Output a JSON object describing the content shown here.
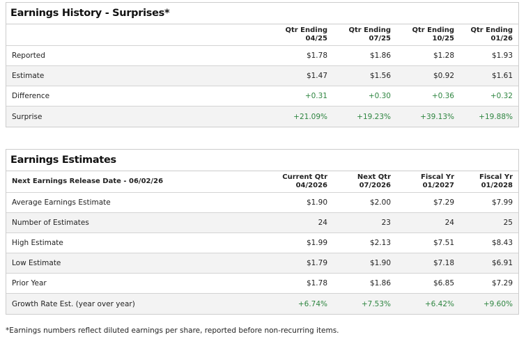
{
  "history": {
    "title": "Earnings History - Surprises*",
    "header_label": "",
    "columns": [
      [
        "Qtr Ending",
        "04/25"
      ],
      [
        "Qtr Ending",
        "07/25"
      ],
      [
        "Qtr Ending",
        "10/25"
      ],
      [
        "Qtr Ending",
        "01/26"
      ]
    ],
    "rows": [
      {
        "label": "Reported",
        "values": [
          "$1.78",
          "$1.86",
          "$1.28",
          "$1.93"
        ],
        "positive": false
      },
      {
        "label": "Estimate",
        "values": [
          "$1.47",
          "$1.56",
          "$0.92",
          "$1.61"
        ],
        "positive": false
      },
      {
        "label": "Difference",
        "values": [
          "+0.31",
          "+0.30",
          "+0.36",
          "+0.32"
        ],
        "positive": true
      },
      {
        "label": "Surprise",
        "values": [
          "+21.09%",
          "+19.23%",
          "+39.13%",
          "+19.88%"
        ],
        "positive": true
      }
    ]
  },
  "estimates": {
    "title": "Earnings Estimates",
    "header_label": "Next Earnings Release Date - 06/02/26",
    "columns": [
      [
        "Current Qtr",
        "04/2026"
      ],
      [
        "Next Qtr",
        "07/2026"
      ],
      [
        "Fiscal Yr",
        "01/2027"
      ],
      [
        "Fiscal Yr",
        "01/2028"
      ]
    ],
    "rows": [
      {
        "label": "Average Earnings Estimate",
        "values": [
          "$1.90",
          "$2.00",
          "$7.29",
          "$7.99"
        ],
        "positive": false
      },
      {
        "label": "Number of Estimates",
        "values": [
          "24",
          "23",
          "24",
          "25"
        ],
        "positive": false
      },
      {
        "label": "High Estimate",
        "values": [
          "$1.99",
          "$2.13",
          "$7.51",
          "$8.43"
        ],
        "positive": false
      },
      {
        "label": "Low Estimate",
        "values": [
          "$1.79",
          "$1.90",
          "$7.18",
          "$6.91"
        ],
        "positive": false
      },
      {
        "label": "Prior Year",
        "values": [
          "$1.78",
          "$1.86",
          "$6.85",
          "$7.29"
        ],
        "positive": false
      },
      {
        "label": "Growth Rate Est. (year over year)",
        "values": [
          "+6.74%",
          "+7.53%",
          "+6.42%",
          "+9.60%"
        ],
        "positive": true
      }
    ]
  },
  "footnote": "*Earnings numbers reflect diluted earnings per share, reported before non-recurring items.",
  "colors": {
    "positive": "#2e8540",
    "alt_row": "#f3f3f3",
    "border": "#cccccc"
  }
}
